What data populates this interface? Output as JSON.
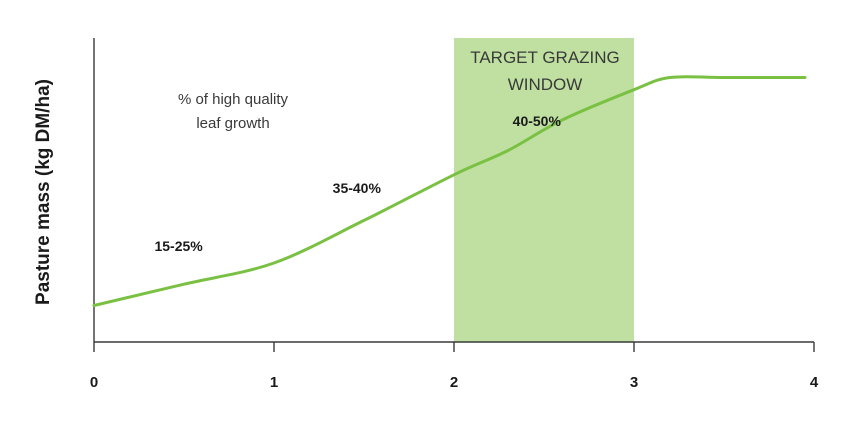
{
  "chart_data": {
    "type": "line",
    "title": "",
    "xlabel": "",
    "ylabel": "Pasture mass (kg DM/ha)",
    "xlim": [
      0,
      4
    ],
    "x_ticks": [
      "0",
      "1",
      "2",
      "3",
      "4"
    ],
    "y_ticks_shown": false,
    "grid": false,
    "series": [
      {
        "x": [
          0,
          0.5,
          1,
          1.5,
          2,
          2.3,
          2.6,
          3,
          3.2,
          3.5,
          3.95
        ],
        "y": [
          0.12,
          0.19,
          0.26,
          0.4,
          0.55,
          0.63,
          0.73,
          0.83,
          0.87,
          0.87,
          0.87
        ],
        "color": "#7ac143"
      }
    ],
    "shaded_band": {
      "x_range": [
        2,
        3
      ],
      "color": "#bfe0a0",
      "label_lines": [
        "TARGET GRAZING",
        "WINDOW"
      ]
    },
    "annotation": {
      "lines": [
        "% of high quality",
        "leaf growth"
      ]
    },
    "value_labels": [
      {
        "text": "15-25%",
        "x": 0.47,
        "y": 0.3
      },
      {
        "text": "35-40%",
        "x": 1.46,
        "y": 0.49
      },
      {
        "text": "40-50%",
        "x": 2.46,
        "y": 0.71
      }
    ]
  }
}
